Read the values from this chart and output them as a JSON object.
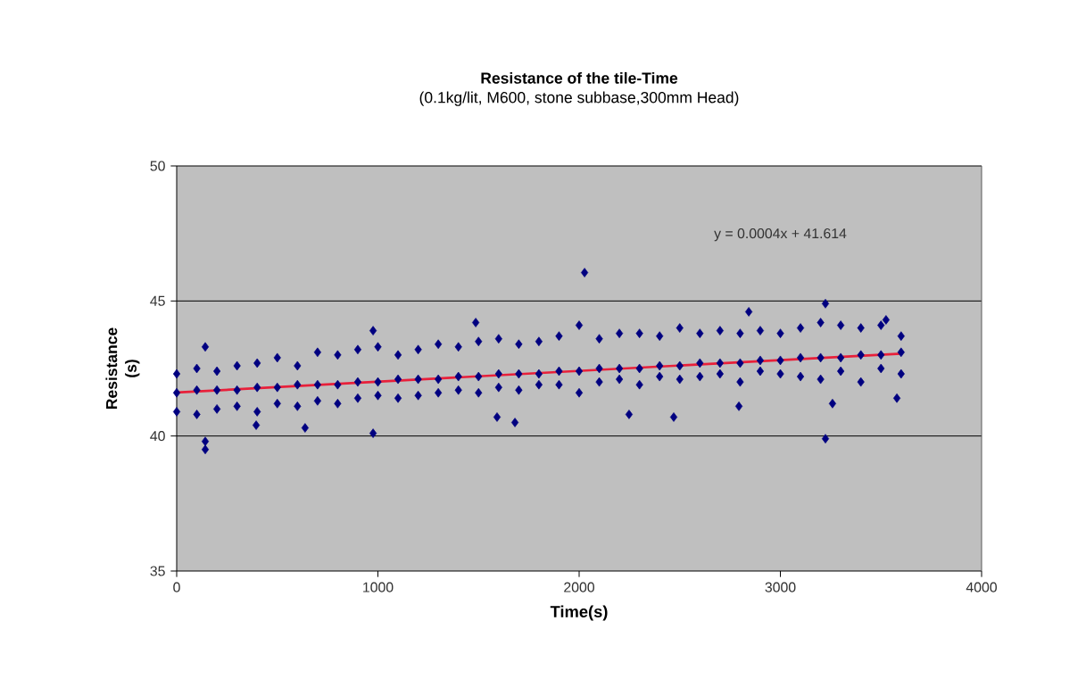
{
  "chart_data": {
    "type": "scatter",
    "title": "Resistance of the tile-Time",
    "subtitle": "(0.1kg/lit, M600, stone subbase,300mm Head)",
    "xlabel": "Time(s)",
    "ylabel": "Resistance (s)",
    "xlim": [
      0,
      4000
    ],
    "xticks": [
      0,
      1000,
      2000,
      3000,
      4000
    ],
    "ylim": [
      35,
      50
    ],
    "yticks": [
      35,
      40,
      45,
      50
    ],
    "grid": "y",
    "annotations": [
      "y = 0.0004x + 41.614"
    ],
    "series": [
      {
        "marker": "diamond",
        "color": "#000080",
        "x": [
          0,
          0,
          0,
          100,
          100,
          100,
          200,
          200,
          200,
          300,
          300,
          300,
          400,
          400,
          400,
          500,
          500,
          500,
          600,
          600,
          600,
          700,
          700,
          700,
          800,
          800,
          800,
          900,
          900,
          900,
          1000,
          1000,
          1000,
          1100,
          1100,
          1100,
          1200,
          1200,
          1200,
          1300,
          1300,
          1300,
          1400,
          1400,
          1400,
          1500,
          1500,
          1500,
          1600,
          1600,
          1600,
          1700,
          1700,
          1700,
          1800,
          1800,
          1800,
          1900,
          1900,
          1900,
          2000,
          2000,
          2000,
          2100,
          2100,
          2100,
          2200,
          2200,
          2200,
          2300,
          2300,
          2300,
          2400,
          2400,
          2400,
          2500,
          2500,
          2500,
          2600,
          2600,
          2600,
          2700,
          2700,
          2700,
          2800,
          2800,
          2800,
          2900,
          2900,
          2900,
          3000,
          3000,
          3000,
          3100,
          3100,
          3100,
          3200,
          3200,
          3200,
          3300,
          3300,
          3300,
          3400,
          3400,
          3400,
          3500,
          3500,
          3500,
          3600,
          3600,
          3600,
          142,
          142,
          142,
          1486,
          976,
          976,
          1592,
          1681,
          638,
          395,
          2027,
          3224,
          3224,
          2843,
          2248,
          2470,
          3579,
          2794,
          3259,
          3525
        ],
        "values": [
          42.3,
          40.9,
          41.6,
          42.5,
          40.8,
          41.7,
          42.4,
          41.0,
          41.7,
          42.6,
          41.1,
          41.7,
          42.7,
          40.9,
          41.8,
          42.9,
          41.2,
          41.8,
          42.6,
          41.1,
          41.9,
          43.1,
          41.3,
          41.9,
          43.0,
          41.2,
          41.9,
          43.2,
          41.4,
          42.0,
          43.3,
          41.5,
          42.0,
          43.0,
          41.4,
          42.1,
          43.2,
          41.5,
          42.1,
          43.4,
          41.6,
          42.1,
          43.3,
          41.7,
          42.2,
          43.5,
          41.6,
          42.2,
          43.6,
          41.8,
          42.3,
          43.4,
          41.7,
          42.3,
          43.5,
          41.9,
          42.3,
          43.7,
          41.9,
          42.4,
          44.1,
          41.6,
          42.4,
          43.6,
          42.0,
          42.5,
          43.8,
          42.1,
          42.5,
          43.8,
          41.9,
          42.5,
          43.7,
          42.2,
          42.6,
          44.0,
          42.1,
          42.6,
          43.8,
          42.2,
          42.7,
          43.9,
          42.3,
          42.7,
          43.8,
          42.0,
          42.7,
          43.9,
          42.4,
          42.8,
          43.8,
          42.3,
          42.8,
          44.0,
          42.2,
          42.9,
          44.2,
          42.1,
          42.9,
          44.1,
          42.4,
          42.9,
          44.0,
          42.0,
          43.0,
          44.1,
          42.5,
          43.0,
          43.7,
          42.3,
          43.1,
          43.3,
          39.5,
          39.8,
          44.2,
          43.9,
          40.1,
          40.7,
          40.5,
          40.3,
          40.4,
          46.05,
          44.9,
          39.9,
          44.6,
          40.8,
          40.7,
          41.4,
          41.1,
          41.2,
          44.3
        ]
      },
      {
        "type": "line",
        "marker": "none",
        "color": "#e8203a",
        "x": [
          0,
          3600
        ],
        "values": [
          41.61,
          43.05
        ]
      }
    ]
  }
}
